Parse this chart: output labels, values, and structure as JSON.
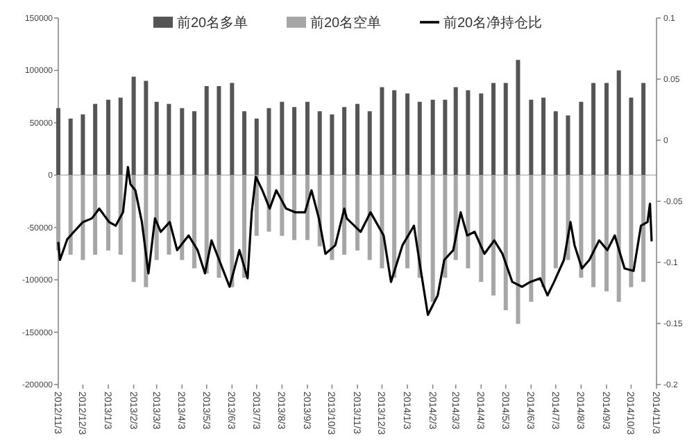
{
  "chart_data": {
    "type": "bar",
    "stacked": true,
    "legend": "top",
    "xlim": [
      "2012-11-03",
      "2014-11-03"
    ],
    "ylim": [
      -200000,
      150000
    ],
    "yticks": [
      -200000,
      -150000,
      -100000,
      -50000,
      0,
      50000,
      100000,
      150000
    ],
    "y2lim": [
      -0.2,
      0.1
    ],
    "y2ticks": [
      -0.2,
      -0.15,
      -0.1,
      -0.05,
      0,
      0.05,
      0.1
    ],
    "xticks": [
      {
        "value": "2012-11-03",
        "label": "2012/11/3"
      },
      {
        "value": "2012-12-03",
        "label": "2012/12/3"
      },
      {
        "value": "2013-01-03",
        "label": "2013/1/3"
      },
      {
        "value": "2013-02-03",
        "label": "2013/2/3"
      },
      {
        "value": "2013-03-03",
        "label": "2013/3/3"
      },
      {
        "value": "2013-04-03",
        "label": "2013/4/3"
      },
      {
        "value": "2013-05-03",
        "label": "2013/5/3"
      },
      {
        "value": "2013-06-03",
        "label": "2013/6/3"
      },
      {
        "value": "2013-07-03",
        "label": "2013/7/3"
      },
      {
        "value": "2013-08-03",
        "label": "2013/8/3"
      },
      {
        "value": "2013-09-03",
        "label": "2013/9/3"
      },
      {
        "value": "2013-10-03",
        "label": "2013/10/3"
      },
      {
        "value": "2013-11-03",
        "label": "2013/11/3"
      },
      {
        "value": "2013-12-03",
        "label": "2013/12/3"
      },
      {
        "value": "2014-01-03",
        "label": "2014/1/3"
      },
      {
        "value": "2014-02-03",
        "label": "2014/2/3"
      },
      {
        "value": "2014-03-03",
        "label": "2014/3/3"
      },
      {
        "value": "2014-04-03",
        "label": "2014/4/3"
      },
      {
        "value": "2014-05-03",
        "label": "2014/5/3"
      },
      {
        "value": "2014-06-03",
        "label": "2014/6/3"
      },
      {
        "value": "2014-07-03",
        "label": "2014/7/3"
      },
      {
        "value": "2014-08-03",
        "label": "2014/8/3"
      },
      {
        "value": "2014-09-03",
        "label": "2014/9/3"
      },
      {
        "value": "2014-10-03",
        "label": "2014/10/3"
      },
      {
        "value": "2014-11-03",
        "label": "2014/11/3"
      }
    ],
    "series": [
      {
        "name": "前20名多单",
        "color": "#555555",
        "x": [
          "2012-11-03",
          "2012-11-18",
          "2012-12-03",
          "2012-12-18",
          "2013-01-03",
          "2013-01-18",
          "2013-02-03",
          "2013-02-18",
          "2013-03-03",
          "2013-03-18",
          "2013-04-03",
          "2013-04-18",
          "2013-05-03",
          "2013-05-18",
          "2013-06-03",
          "2013-06-18",
          "2013-07-03",
          "2013-07-18",
          "2013-08-03",
          "2013-08-18",
          "2013-09-03",
          "2013-09-18",
          "2013-10-03",
          "2013-10-18",
          "2013-11-03",
          "2013-11-18",
          "2013-12-03",
          "2013-12-18",
          "2014-01-03",
          "2014-01-18",
          "2014-02-03",
          "2014-02-18",
          "2014-03-03",
          "2014-03-18",
          "2014-04-03",
          "2014-04-18",
          "2014-05-03",
          "2014-05-18",
          "2014-06-03",
          "2014-06-18",
          "2014-07-03",
          "2014-07-18",
          "2014-08-03",
          "2014-08-18",
          "2014-09-03",
          "2014-09-18",
          "2014-10-03",
          "2014-10-18"
        ],
        "values": [
          64000,
          54000,
          58000,
          68000,
          72000,
          74000,
          94000,
          90000,
          70000,
          68000,
          64000,
          61000,
          85000,
          85000,
          88000,
          61000,
          54000,
          64000,
          70000,
          65000,
          70000,
          61000,
          58000,
          65000,
          68000,
          61000,
          84000,
          81000,
          78000,
          70000,
          72000,
          72000,
          84000,
          81000,
          78000,
          88000,
          88000,
          110000,
          72000,
          74000,
          61000,
          57000,
          70000,
          88000,
          88000,
          100000,
          74000,
          88000
        ]
      },
      {
        "name": "前20名空单",
        "color": "#a6a6a6",
        "x": [
          "2012-11-03",
          "2012-11-18",
          "2012-12-03",
          "2012-12-18",
          "2013-01-03",
          "2013-01-18",
          "2013-02-03",
          "2013-02-18",
          "2013-03-03",
          "2013-03-18",
          "2013-04-03",
          "2013-04-18",
          "2013-05-03",
          "2013-05-18",
          "2013-06-03",
          "2013-06-18",
          "2013-07-03",
          "2013-07-18",
          "2013-08-03",
          "2013-08-18",
          "2013-09-03",
          "2013-09-18",
          "2013-10-03",
          "2013-10-18",
          "2013-11-03",
          "2013-11-18",
          "2013-12-03",
          "2013-12-18",
          "2014-01-03",
          "2014-01-18",
          "2014-02-03",
          "2014-02-18",
          "2014-03-03",
          "2014-03-18",
          "2014-04-03",
          "2014-04-18",
          "2014-05-03",
          "2014-05-18",
          "2014-06-03",
          "2014-06-18",
          "2014-07-03",
          "2014-07-18",
          "2014-08-03",
          "2014-08-18",
          "2014-09-03",
          "2014-09-18",
          "2014-10-03",
          "2014-10-18"
        ],
        "values": [
          -72000,
          -76000,
          -81000,
          -76000,
          -72000,
          -76000,
          -102000,
          -107000,
          -81000,
          -76000,
          -81000,
          -89000,
          -94000,
          -98000,
          -107000,
          -98000,
          -58000,
          -54000,
          -58000,
          -62000,
          -62000,
          -68000,
          -81000,
          -76000,
          -72000,
          -81000,
          -89000,
          -98000,
          -89000,
          -98000,
          -121000,
          -98000,
          -81000,
          -89000,
          -102000,
          -115000,
          -129000,
          -142000,
          -121000,
          -107000,
          -89000,
          -81000,
          -98000,
          -107000,
          -111000,
          -121000,
          -107000,
          -102000
        ]
      },
      {
        "name": "前20名净持仓比",
        "type": "line",
        "axis": "y2",
        "color": "#000000",
        "x": [
          "2012-11-03",
          "2012-11-05",
          "2012-11-14",
          "2012-11-22",
          "2012-12-03",
          "2012-12-14",
          "2012-12-23",
          "2013-01-04",
          "2013-01-12",
          "2013-01-21",
          "2013-01-27",
          "2013-01-30",
          "2013-02-05",
          "2013-02-13",
          "2013-02-21",
          "2013-03-01",
          "2013-03-08",
          "2013-03-19",
          "2013-03-28",
          "2013-04-11",
          "2013-04-22",
          "2013-05-01",
          "2013-05-09",
          "2013-05-20",
          "2013-05-31",
          "2013-06-12",
          "2013-06-22",
          "2013-06-27",
          "2013-07-02",
          "2013-07-10",
          "2013-07-19",
          "2013-07-27",
          "2013-08-08",
          "2013-08-19",
          "2013-08-31",
          "2013-09-08",
          "2013-09-17",
          "2013-09-25",
          "2013-10-07",
          "2013-10-18",
          "2013-10-21",
          "2013-11-07",
          "2013-11-19",
          "2013-12-05",
          "2013-12-14",
          "2013-12-28",
          "2014-01-11",
          "2014-01-19",
          "2014-01-28",
          "2014-02-09",
          "2014-02-17",
          "2014-02-28",
          "2014-03-09",
          "2014-03-17",
          "2014-03-26",
          "2014-04-07",
          "2014-04-19",
          "2014-04-29",
          "2014-05-11",
          "2014-05-23",
          "2014-06-02",
          "2014-06-14",
          "2014-06-23",
          "2014-07-01",
          "2014-07-13",
          "2014-07-21",
          "2014-07-26",
          "2014-08-04",
          "2014-08-13",
          "2014-08-25",
          "2014-09-04",
          "2014-09-13",
          "2014-09-25",
          "2014-10-06",
          "2014-10-15",
          "2014-10-23",
          "2014-10-26",
          "2014-10-28"
        ],
        "values": [
          -0.084,
          -0.098,
          -0.081,
          -0.075,
          -0.067,
          -0.064,
          -0.056,
          -0.067,
          -0.07,
          -0.059,
          -0.022,
          -0.036,
          -0.041,
          -0.067,
          -0.109,
          -0.064,
          -0.075,
          -0.067,
          -0.09,
          -0.078,
          -0.09,
          -0.109,
          -0.082,
          -0.101,
          -0.12,
          -0.09,
          -0.113,
          -0.059,
          -0.03,
          -0.041,
          -0.056,
          -0.041,
          -0.056,
          -0.059,
          -0.059,
          -0.041,
          -0.064,
          -0.093,
          -0.086,
          -0.056,
          -0.064,
          -0.075,
          -0.059,
          -0.078,
          -0.116,
          -0.086,
          -0.07,
          -0.105,
          -0.143,
          -0.127,
          -0.098,
          -0.09,
          -0.059,
          -0.078,
          -0.075,
          -0.093,
          -0.082,
          -0.093,
          -0.116,
          -0.12,
          -0.116,
          -0.113,
          -0.127,
          -0.116,
          -0.098,
          -0.067,
          -0.086,
          -0.105,
          -0.098,
          -0.082,
          -0.09,
          -0.078,
          -0.105,
          -0.107,
          -0.07,
          -0.067,
          -0.052,
          -0.082
        ]
      }
    ]
  }
}
